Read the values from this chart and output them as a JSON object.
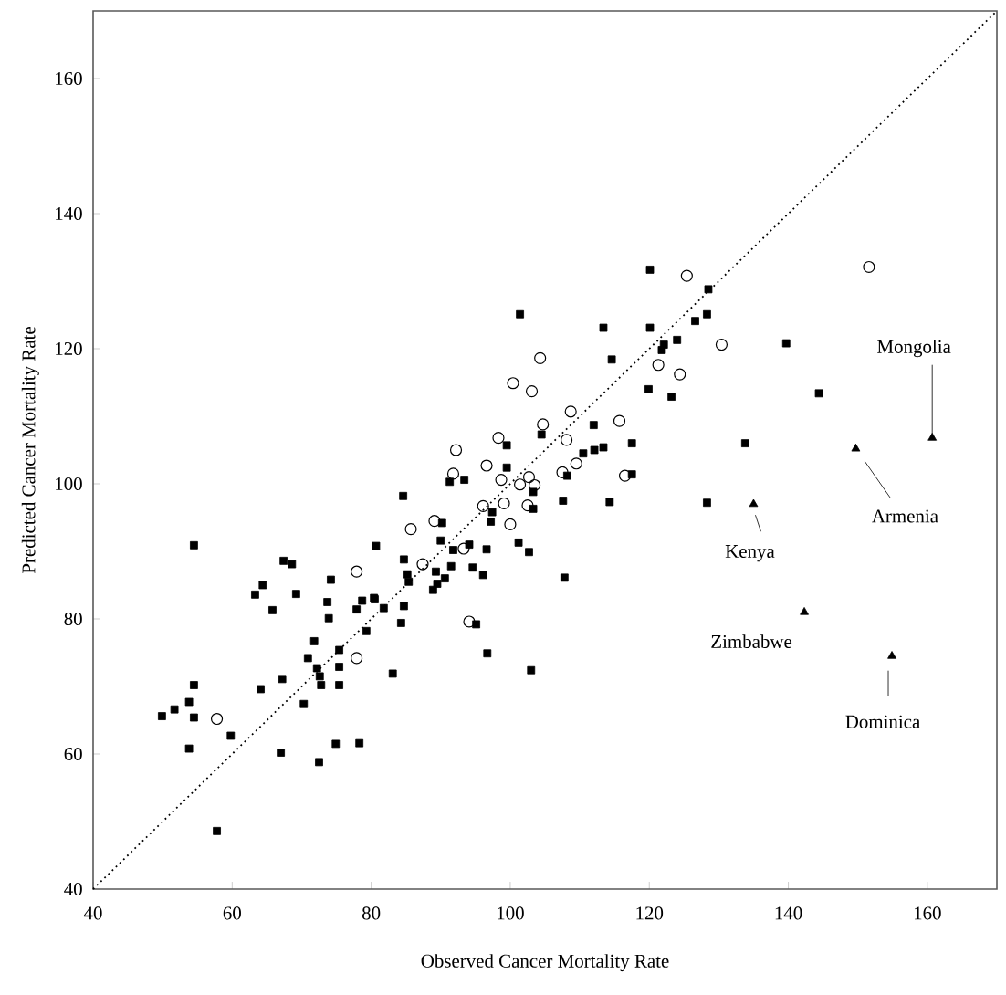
{
  "chart_data": {
    "type": "scatter",
    "xlabel": "Observed Cancer Mortality Rate",
    "ylabel": "Predicted Cancer Mortality Rate",
    "xlim": [
      40,
      170
    ],
    "ylim": [
      40,
      170
    ],
    "xticks": [
      40,
      60,
      80,
      100,
      120,
      140,
      160
    ],
    "yticks": [
      40,
      60,
      80,
      100,
      120,
      140,
      160
    ],
    "series": [
      {
        "marker": "square",
        "color": "#000000",
        "x": [
          49.9,
          51.7,
          53.8,
          54.5,
          54.5,
          53.8,
          57.8,
          59.8,
          64.1,
          67.2,
          70.3,
          67.0,
          72.5,
          74.9,
          78.3,
          63.3,
          64.4,
          67.4,
          68.6,
          65.8,
          69.2,
          74.2,
          73.7,
          73.9,
          77.9,
          78.7,
          80.4,
          81.8,
          79.3,
          71.8,
          70.9,
          72.2,
          72.6,
          72.8,
          75.4,
          75.4,
          75.4,
          83.1,
          54.5,
          80.7,
          84.6,
          80.5,
          84.3,
          84.7,
          84.7,
          85.2,
          85.4,
          88.9,
          89.5,
          90.6,
          89.3,
          90.0,
          90.2,
          91.5,
          91.8,
          94.1,
          94.6,
          96.1,
          96.6,
          95.1,
          96.7,
          103.0,
          91.3,
          93.4,
          99.5,
          99.5,
          97.2,
          97.4,
          101.2,
          102.7,
          103.3,
          103.3,
          104.5,
          107.6,
          107.8,
          108.2,
          110.5,
          112.1,
          113.4,
          112.0,
          114.3,
          117.5,
          117.5,
          120.1,
          101.4,
          113.4,
          120.1,
          128.5,
          128.3,
          126.6,
          124.0,
          122.1,
          121.8,
          114.6,
          139.7,
          119.9,
          123.2,
          133.8,
          128.3,
          144.4
        ],
        "values": [
          65.6,
          66.6,
          67.7,
          70.2,
          65.4,
          60.8,
          48.6,
          62.7,
          69.6,
          71.1,
          67.4,
          60.2,
          58.8,
          61.5,
          61.6,
          83.6,
          85.0,
          88.6,
          88.1,
          81.3,
          83.7,
          85.8,
          82.5,
          80.1,
          81.4,
          82.7,
          83.1,
          81.6,
          78.2,
          76.7,
          74.2,
          72.7,
          71.5,
          70.2,
          75.4,
          72.9,
          70.2,
          71.9,
          90.9,
          90.8,
          98.2,
          82.9,
          79.4,
          81.9,
          88.8,
          86.6,
          85.5,
          84.3,
          85.2,
          86.0,
          87.0,
          91.6,
          94.2,
          87.8,
          90.2,
          91.0,
          87.6,
          86.5,
          90.3,
          79.2,
          74.9,
          72.4,
          100.3,
          100.6,
          105.7,
          102.4,
          94.4,
          95.8,
          91.3,
          89.9,
          96.3,
          98.8,
          107.3,
          97.5,
          86.1,
          101.2,
          104.5,
          105.0,
          105.4,
          108.7,
          97.3,
          106.0,
          101.4,
          131.7,
          125.1,
          123.1,
          123.1,
          128.8,
          125.1,
          124.1,
          121.3,
          120.6,
          119.8,
          118.4,
          120.8,
          114.0,
          112.9,
          106.0,
          97.2,
          113.4
        ]
      },
      {
        "marker": "circle",
        "color": "#000000",
        "x": [
          57.8,
          77.9,
          77.9,
          92.2,
          98.3,
          91.8,
          96.6,
          98.7,
          101.4,
          102.7,
          103.5,
          99.1,
          96.1,
          102.5,
          100.0,
          89.1,
          85.7,
          87.4,
          93.3,
          94.1,
          104.7,
          108.1,
          107.5,
          109.5,
          115.7,
          116.5,
          125.4,
          130.4,
          104.3,
          100.4,
          103.1,
          121.3,
          124.4,
          108.7,
          151.6
        ],
        "values": [
          65.2,
          87.0,
          74.2,
          105.0,
          106.8,
          101.5,
          102.7,
          100.6,
          99.9,
          101.0,
          99.8,
          97.1,
          96.7,
          96.8,
          94.0,
          94.5,
          93.3,
          88.1,
          90.4,
          79.6,
          108.8,
          106.5,
          101.7,
          103.0,
          109.3,
          101.2,
          130.8,
          120.6,
          118.6,
          114.9,
          113.7,
          117.6,
          116.2,
          110.7,
          132.1
        ]
      },
      {
        "marker": "triangle",
        "color": "#000000",
        "x": [
          160.7,
          149.7,
          135.0,
          142.3,
          154.9
        ],
        "values": [
          106.8,
          105.2,
          97.0,
          81.0,
          74.5
        ]
      },
      {
        "type": "line",
        "marker": "none",
        "line_style": "dotted",
        "color": "#000000",
        "x": [
          40,
          170
        ],
        "values": [
          40,
          170
        ]
      }
    ],
    "annotations": [
      {
        "text": "Mongolia",
        "x": 160.7,
        "y": 106.8
      },
      {
        "text": "Armenia",
        "x": 149.7,
        "y": 105.2
      },
      {
        "text": "Kenya",
        "x": 135.0,
        "y": 97.0
      },
      {
        "text": "Zimbabwe",
        "x": 142.3,
        "y": 81.0
      },
      {
        "text": "Dominica",
        "x": 154.9,
        "y": 74.5
      }
    ]
  }
}
